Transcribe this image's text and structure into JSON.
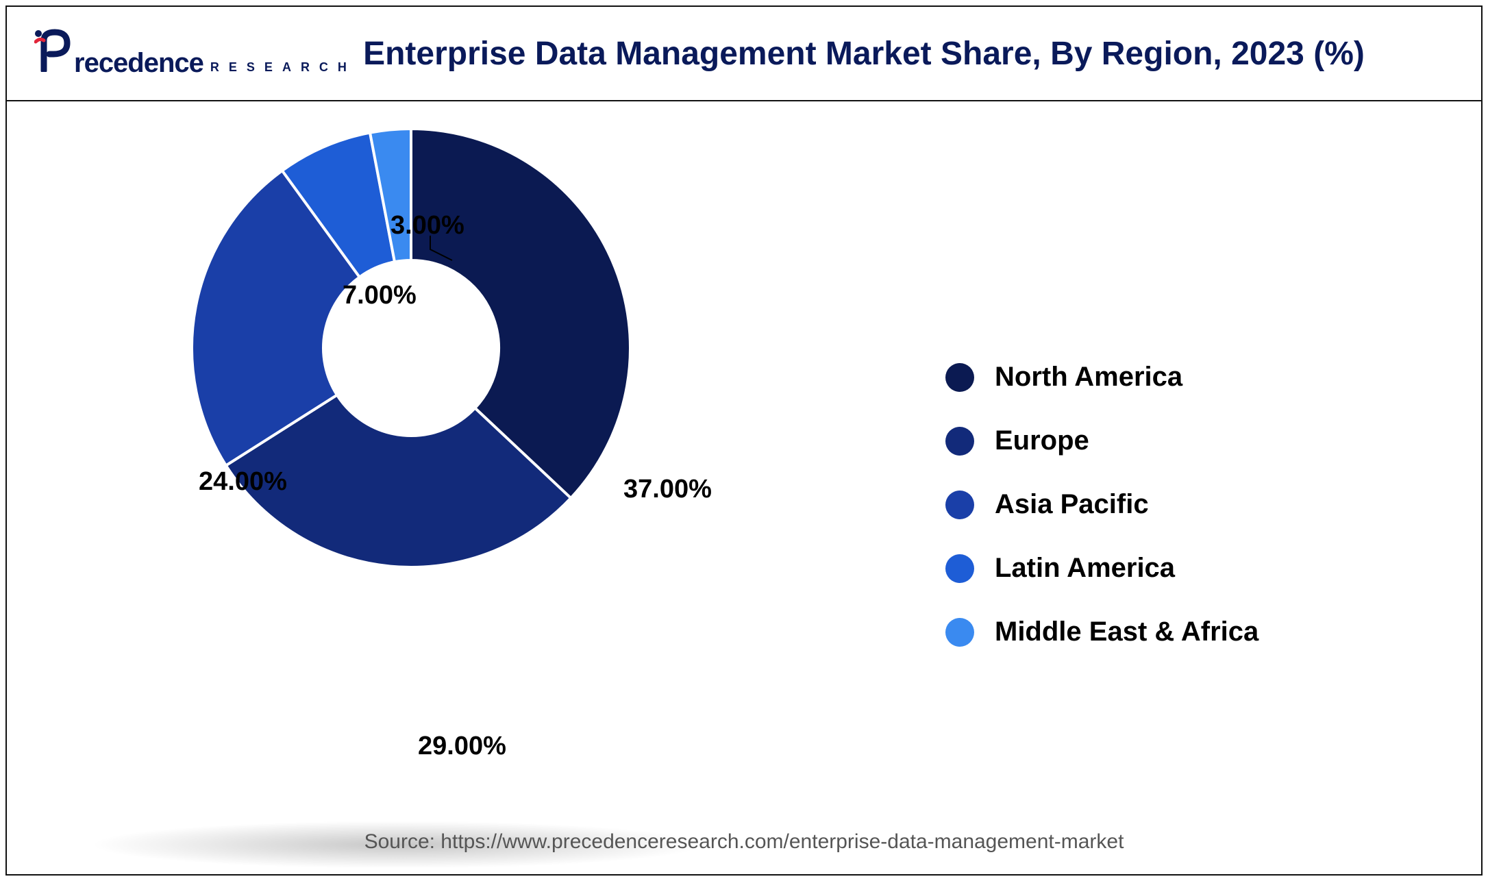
{
  "header": {
    "logo_text": "recedence",
    "logo_sub": "RESEARCH",
    "title": "Enterprise Data Management Market Share, By Region, 2023 (%)"
  },
  "chart": {
    "type": "donut",
    "inner_radius_ratio": 0.4,
    "background_color": "#ffffff",
    "start_angle_deg": -90,
    "slices": [
      {
        "label": "North America",
        "value": 37.0,
        "display": "37.00%",
        "color": "#0b1a52"
      },
      {
        "label": "Europe",
        "value": 29.0,
        "display": "29.00%",
        "color": "#122a7a"
      },
      {
        "label": "Asia Pacific",
        "value": 24.0,
        "display": "24.00%",
        "color": "#1a3fa8"
      },
      {
        "label": "Latin America",
        "value": 7.0,
        "display": "7.00%",
        "color": "#1e5dd6"
      },
      {
        "label": "Middle East & Africa",
        "value": 3.0,
        "display": "3.00%",
        "color": "#3a8af0"
      }
    ],
    "label_fontsize": 38,
    "label_fontweight": 700,
    "legend_fontsize": 40,
    "legend_fontweight": 700,
    "stroke_color": "#ffffff",
    "stroke_width": 4
  },
  "source": "Source: https://www.precedenceresearch.com/enterprise-data-management-market"
}
